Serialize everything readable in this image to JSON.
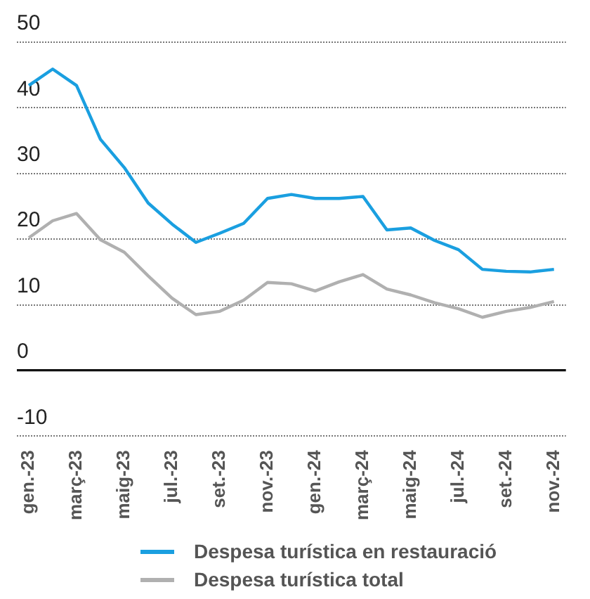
{
  "chart_data": {
    "type": "line",
    "categories": [
      "gen.-23",
      null,
      "març-23",
      null,
      "maig-23",
      null,
      "jul.-23",
      null,
      "set.-23",
      null,
      "nov.-23",
      null,
      "gen.-24",
      null,
      "març-24",
      null,
      "maig-24",
      null,
      "jul.-24",
      null,
      "set.-24",
      null,
      "nov.-24"
    ],
    "series": [
      {
        "name": "Despesa turística en restauració",
        "color": "#1a9fe0",
        "values": [
          43.4,
          45.9,
          43.4,
          35.2,
          30.9,
          25.5,
          22.3,
          19.5,
          20.9,
          22.4,
          26.2,
          26.8,
          26.2,
          26.2,
          26.5,
          21.4,
          21.7,
          19.8,
          18.4,
          15.4,
          15.1,
          15.0,
          15.4
        ]
      },
      {
        "name": "Despesa turística total",
        "color": "#b0b0b0",
        "values": [
          20.2,
          22.8,
          23.9,
          19.9,
          18.0,
          14.4,
          11.0,
          8.5,
          9.0,
          10.7,
          13.4,
          13.2,
          12.1,
          13.5,
          14.6,
          12.4,
          11.5,
          10.3,
          9.4,
          8.1,
          9.0,
          9.6,
          10.5
        ]
      }
    ],
    "ylim": [
      -10,
      50
    ],
    "yticks": [
      -10,
      0,
      10,
      20,
      30,
      40,
      50
    ],
    "grid": "y",
    "legend": "bottom",
    "marker": "none"
  }
}
